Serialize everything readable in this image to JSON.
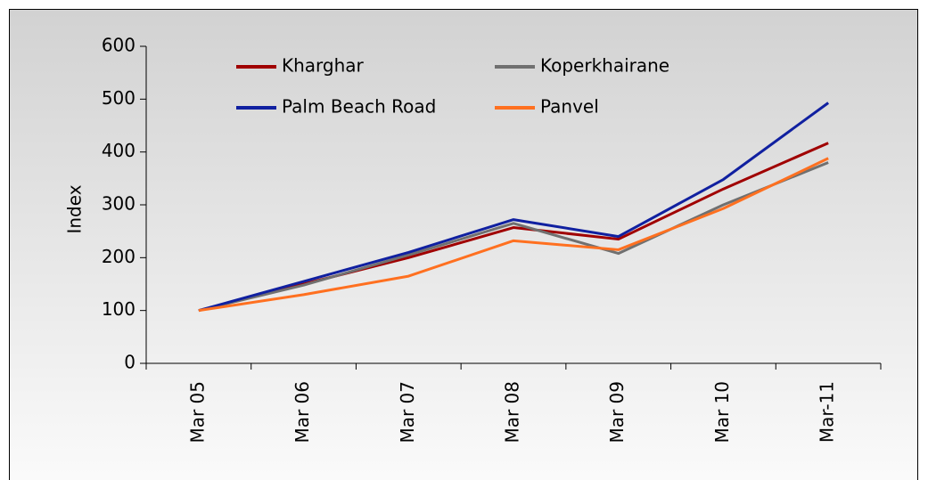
{
  "chart_data": {
    "type": "line",
    "y_label": "Index",
    "categories": [
      "Mar 05",
      "Mar 06",
      "Mar 07",
      "Mar 08",
      "Mar 09",
      "Mar 10",
      "Mar-11"
    ],
    "series": [
      {
        "name": "Kharghar",
        "color": "#a00000",
        "values": [
          100,
          150,
          200,
          257,
          235,
          330,
          417
        ]
      },
      {
        "name": "Koperkhairane",
        "color": "#707070",
        "values": [
          100,
          148,
          205,
          265,
          208,
          300,
          380
        ]
      },
      {
        "name": "Palm Beach Road",
        "color": "#1020a0",
        "values": [
          100,
          155,
          210,
          272,
          240,
          348,
          493
        ]
      },
      {
        "name": "Panvel",
        "color": "#ff7020",
        "values": [
          100,
          130,
          165,
          232,
          215,
          293,
          388
        ]
      }
    ],
    "ylim": [
      0,
      600
    ],
    "yticks": [
      0,
      100,
      200,
      300,
      400,
      500,
      600
    ],
    "grid": false,
    "legend": "top"
  }
}
